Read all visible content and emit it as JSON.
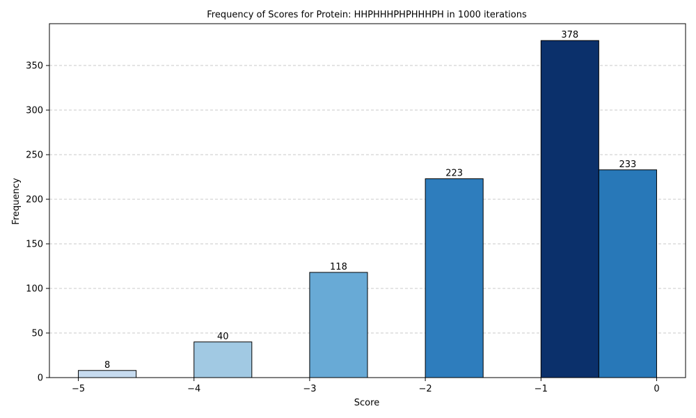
{
  "chart_data": {
    "type": "bar",
    "title": "Frequency of Scores for Protein: HHPHHHPHPHHHPH in 1000 iterations",
    "xlabel": "Score",
    "ylabel": "Frequency",
    "xlim": [
      -5.25,
      0.25
    ],
    "ylim": [
      0,
      396.9
    ],
    "x_ticks": [
      -5,
      -4,
      -3,
      -2,
      -1,
      0
    ],
    "x_tick_labels": [
      "−5",
      "−4",
      "−3",
      "−2",
      "−1",
      "0"
    ],
    "y_ticks": [
      0,
      50,
      100,
      150,
      200,
      250,
      300,
      350
    ],
    "y_tick_labels": [
      "0",
      "50",
      "100",
      "150",
      "200",
      "250",
      "300",
      "350"
    ],
    "grid": "y-dashed",
    "edge_color": "#000000",
    "bars": [
      {
        "x0": -5.0,
        "x1": -4.5,
        "value": 8,
        "label": "8",
        "color": "#c6dbef"
      },
      {
        "x0": -4.0,
        "x1": -3.5,
        "value": 40,
        "label": "40",
        "color": "#a1c9e3"
      },
      {
        "x0": -3.0,
        "x1": -2.5,
        "value": 118,
        "label": "118",
        "color": "#68aad6"
      },
      {
        "x0": -2.0,
        "x1": -1.5,
        "value": 223,
        "label": "223",
        "color": "#2e7dbd"
      },
      {
        "x0": -1.0,
        "x1": -0.5,
        "value": 378,
        "label": "378",
        "color": "#0b306b"
      },
      {
        "x0": -0.5,
        "x1": 0.0,
        "value": 233,
        "label": "233",
        "color": "#2878b8"
      }
    ]
  }
}
